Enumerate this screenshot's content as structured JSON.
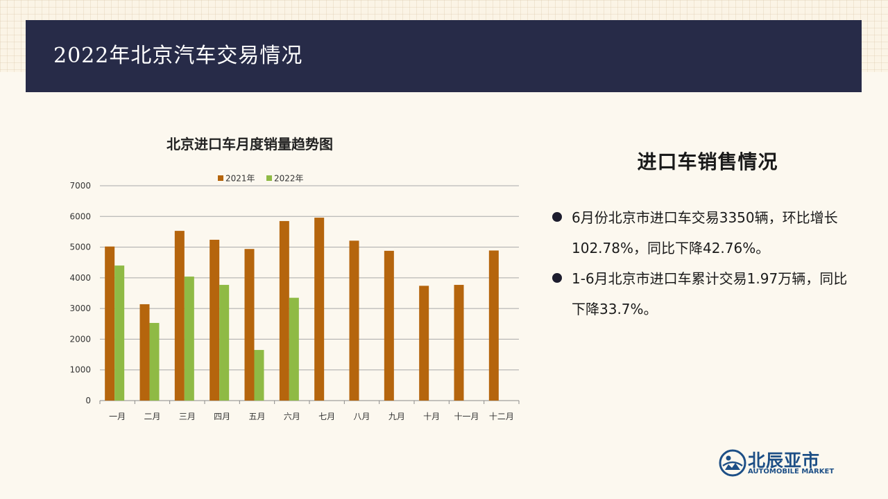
{
  "page": {
    "title": "2022年北京汽车交易情况"
  },
  "chart_data": {
    "type": "bar",
    "title": "北京进口车月度销量趋势图",
    "categories": [
      "一月",
      "二月",
      "三月",
      "四月",
      "五月",
      "六月",
      "七月",
      "八月",
      "九月",
      "十月",
      "十一月",
      "十二月"
    ],
    "series": [
      {
        "name": "2021年",
        "color": "#b5650d",
        "values": [
          5020,
          3140,
          5530,
          5240,
          4940,
          5850,
          5960,
          5210,
          4880,
          3740,
          3770,
          4890
        ]
      },
      {
        "name": "2022年",
        "color": "#8fba45",
        "values": [
          4400,
          2530,
          4040,
          3770,
          1650,
          3350,
          null,
          null,
          null,
          null,
          null,
          null
        ]
      }
    ],
    "ylim": [
      0,
      7000
    ],
    "yticks": [
      0,
      1000,
      2000,
      3000,
      4000,
      5000,
      6000,
      7000
    ],
    "grid": true,
    "legend": "top-center",
    "xlabel": "",
    "ylabel": ""
  },
  "summary": {
    "heading": "进口车销售情况",
    "bullets": [
      "6月份北京市进口车交易3350辆，环比增长102.78%，同比下降42.76%。",
      "1-6月北京市进口车累计交易1.97万辆，同比下降33.7%。"
    ]
  },
  "logo": {
    "name_cn": "北辰亚市",
    "name_en": "AUTOMOBILE MARKET",
    "color": "#1d4f86"
  }
}
